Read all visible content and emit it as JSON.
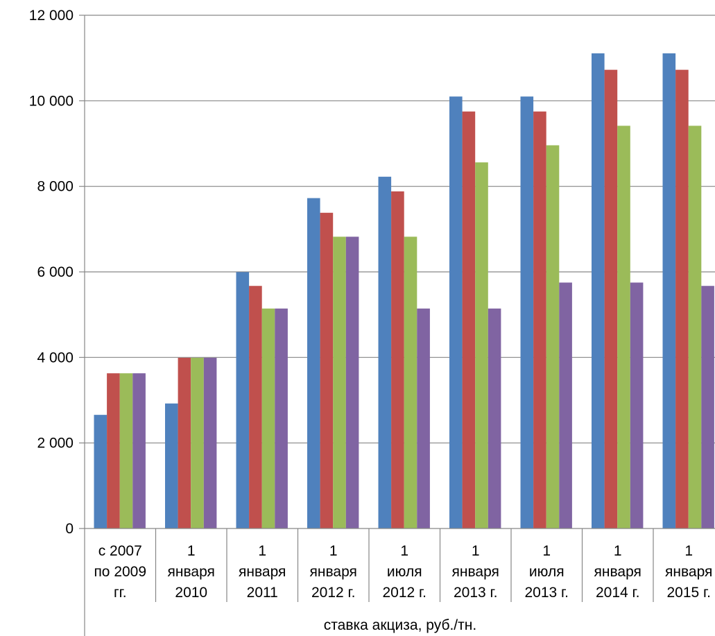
{
  "chart_data": {
    "type": "bar",
    "xlabel": "ставка акциза, руб./тн.",
    "ylabel": "",
    "ylim": [
      0,
      12000
    ],
    "yticks": [
      0,
      2000,
      4000,
      6000,
      8000,
      10000,
      12000
    ],
    "ytick_labels": [
      "0",
      "2 000",
      "4 000",
      "6 000",
      "8 000",
      "10 000",
      "12 000"
    ],
    "grid": true,
    "legend": "none",
    "categories": [
      [
        "с 2007",
        "по 2009",
        "гг."
      ],
      [
        "1",
        "января",
        "2010"
      ],
      [
        "1",
        "января",
        "2011"
      ],
      [
        "1",
        "января",
        "2012 г."
      ],
      [
        "1",
        "июля",
        "2012 г."
      ],
      [
        "1",
        "января",
        "2013 г."
      ],
      [
        "1",
        "июля",
        "2013 г."
      ],
      [
        "1",
        "января",
        "2014 г."
      ],
      [
        "1",
        "января",
        "2015 г."
      ]
    ],
    "series": [
      {
        "color": "#4F81BD",
        "values": [
          2657,
          2923,
          5995,
          7725,
          8225,
          10100,
          10100,
          11110,
          11110
        ]
      },
      {
        "color": "#C0504D",
        "values": [
          3629,
          3992,
          5672,
          7382,
          7882,
          9750,
          9750,
          10725,
          10725
        ]
      },
      {
        "color": "#9BBB59",
        "values": [
          3629,
          3992,
          5143,
          6822,
          6822,
          8560,
          8960,
          9416,
          9416
        ]
      },
      {
        "color": "#8064A2",
        "values": [
          3629,
          3992,
          5143,
          6822,
          5143,
          5143,
          5750,
          5750,
          5672
        ]
      }
    ]
  }
}
